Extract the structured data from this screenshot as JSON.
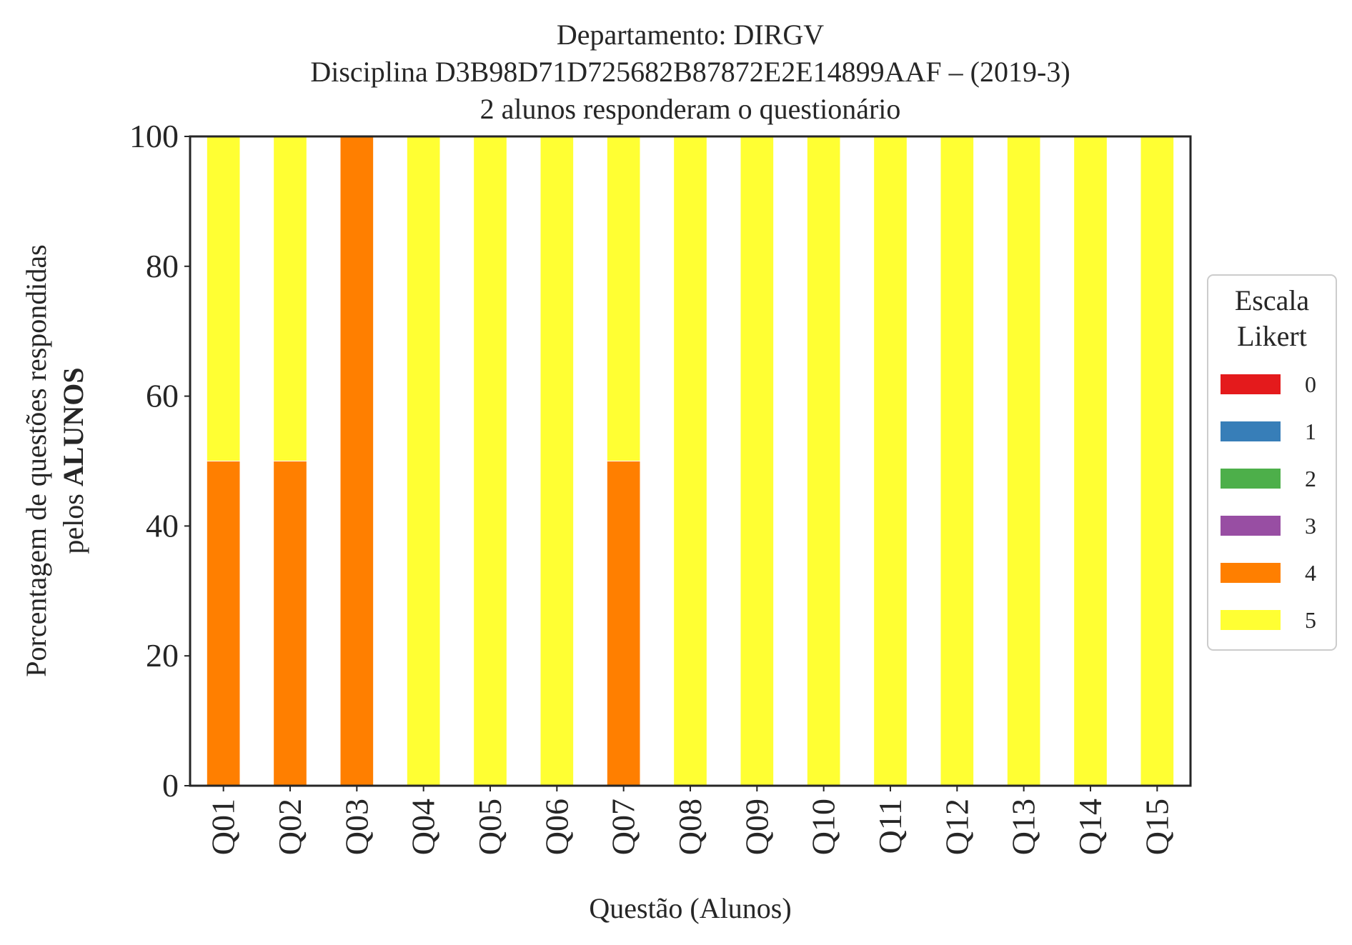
{
  "chart_data": {
    "type": "bar",
    "stacked": true,
    "title_lines": [
      "Departamento: DIRGV",
      "Disciplina D3B98D71D725682B87872E2E14899AAF – (2019-3)",
      "2 alunos responderam o questionário"
    ],
    "xlabel": "Questão (Alunos)",
    "ylabel_line1": "Porcentagem de questões respondidas",
    "ylabel_line2_prefix": "pelos ",
    "ylabel_line2_bold": "ALUNOS",
    "ylim": [
      0,
      100
    ],
    "yticks": [
      "0",
      "20",
      "40",
      "60",
      "80",
      "100"
    ],
    "grid": false,
    "legend": {
      "title_lines": [
        "Escala",
        "Likert"
      ],
      "placement": "center-right-outside"
    },
    "categories": [
      "Q01",
      "Q02",
      "Q03",
      "Q04",
      "Q05",
      "Q06",
      "Q07",
      "Q08",
      "Q09",
      "Q10",
      "Q11",
      "Q12",
      "Q13",
      "Q14",
      "Q15"
    ],
    "series": [
      {
        "name": "0",
        "color": "#e41a1c",
        "values": [
          0,
          0,
          0,
          0,
          0,
          0,
          0,
          0,
          0,
          0,
          0,
          0,
          0,
          0,
          0
        ]
      },
      {
        "name": "1",
        "color": "#377eb8",
        "values": [
          0,
          0,
          0,
          0,
          0,
          0,
          0,
          0,
          0,
          0,
          0,
          0,
          0,
          0,
          0
        ]
      },
      {
        "name": "2",
        "color": "#4daf4a",
        "values": [
          0,
          0,
          0,
          0,
          0,
          0,
          0,
          0,
          0,
          0,
          0,
          0,
          0,
          0,
          0
        ]
      },
      {
        "name": "3",
        "color": "#984ea3",
        "values": [
          0,
          0,
          0,
          0,
          0,
          0,
          0,
          0,
          0,
          0,
          0,
          0,
          0,
          0,
          0
        ]
      },
      {
        "name": "4",
        "color": "#ff7f00",
        "values": [
          50,
          50,
          100,
          0,
          0,
          0,
          50,
          0,
          0,
          0,
          0,
          0,
          0,
          0,
          0
        ]
      },
      {
        "name": "5",
        "color": "#ffff33",
        "values": [
          50,
          50,
          0,
          100,
          100,
          100,
          50,
          100,
          100,
          100,
          100,
          100,
          100,
          100,
          100
        ]
      }
    ]
  }
}
